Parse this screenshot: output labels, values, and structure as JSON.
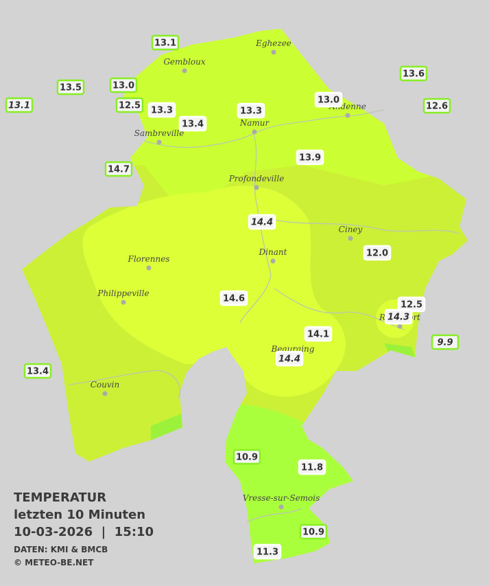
{
  "legend": {
    "title": "TEMPERATUR",
    "subtitle": "letzten 10 Minuten",
    "datetime": "10-03-2026  |  15:10",
    "source": "DATEN: KMI & BMCB",
    "copyright": "© METEO-BE.NET"
  },
  "cities": [
    "Eghezee",
    "Gembloux",
    "Andenne",
    "Namur",
    "Sambreville",
    "Profondeville",
    "Ciney",
    "Dinant",
    "Florennes",
    "Philippeville",
    "Rochefort",
    "Beauraing",
    "Couvin",
    "Vresse-sur-Semois"
  ],
  "stations": [
    {
      "label": "13.1"
    },
    {
      "label": "13.5"
    },
    {
      "label": "13.1",
      "italic": true
    },
    {
      "label": "13.0"
    },
    {
      "label": "12.5"
    },
    {
      "label": "13.3"
    },
    {
      "label": "13.4"
    },
    {
      "label": "13.3"
    },
    {
      "label": "13.0"
    },
    {
      "label": "13.6"
    },
    {
      "label": "12.6"
    },
    {
      "label": "14.7"
    },
    {
      "label": "13.9"
    },
    {
      "label": "14.4",
      "italic": true
    },
    {
      "label": "12.0"
    },
    {
      "label": "14.6"
    },
    {
      "label": "12.5"
    },
    {
      "label": "14.3",
      "italic": true
    },
    {
      "label": "9.9",
      "italic": true
    },
    {
      "label": "14.1"
    },
    {
      "label": "14.4",
      "italic": true
    },
    {
      "label": "13.4"
    },
    {
      "label": "10.9"
    },
    {
      "label": "11.8"
    },
    {
      "label": "10.9"
    },
    {
      "label": "11.3"
    }
  ]
}
